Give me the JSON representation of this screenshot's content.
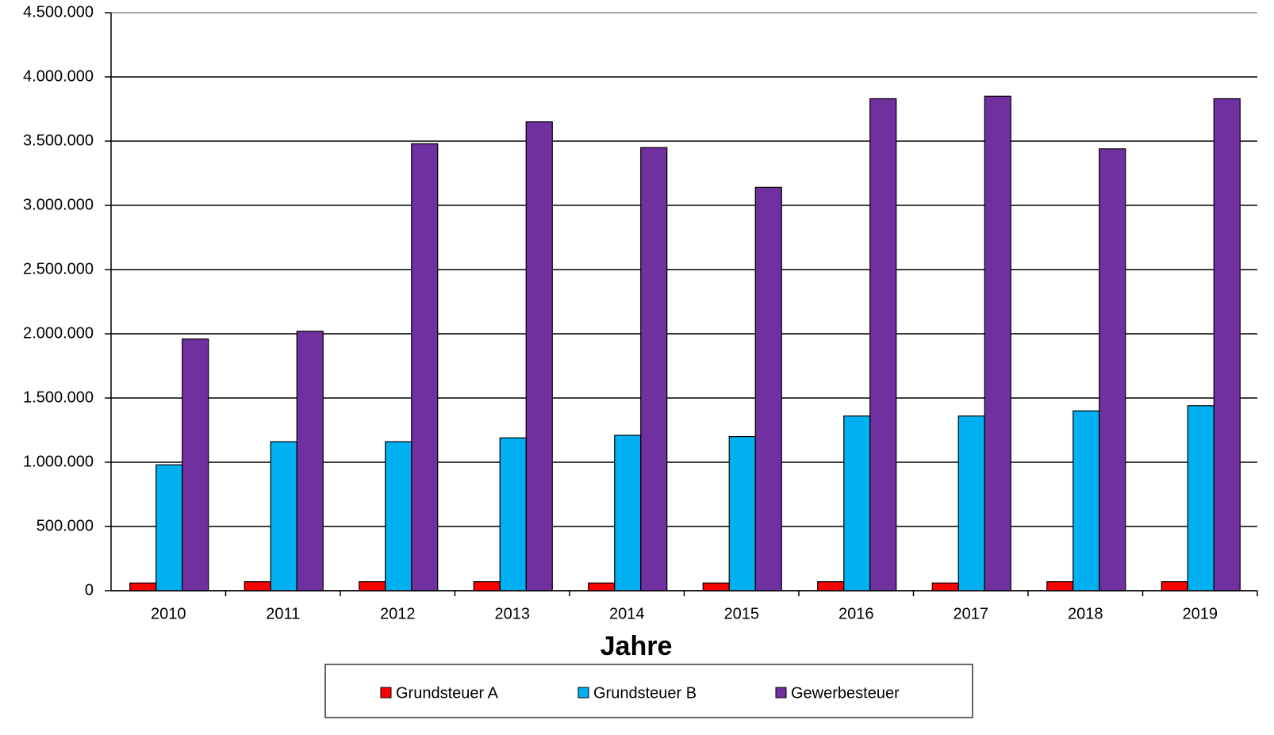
{
  "chart_data": {
    "type": "bar",
    "x_label": "Jahre",
    "categories": [
      "2010",
      "2011",
      "2012",
      "2013",
      "2014",
      "2015",
      "2016",
      "2017",
      "2018",
      "2019"
    ],
    "series": [
      {
        "name": "Grundsteuer A",
        "color": "#ff0000",
        "values": [
          60000,
          70000,
          70000,
          70000,
          60000,
          60000,
          70000,
          60000,
          70000,
          70000
        ]
      },
      {
        "name": "Grundsteuer B",
        "color": "#00b0f0",
        "values": [
          980000,
          1160000,
          1160000,
          1190000,
          1210000,
          1200000,
          1360000,
          1360000,
          1400000,
          1440000
        ]
      },
      {
        "name": "Gewerbesteuer",
        "color": "#7030a0",
        "values": [
          1960000,
          2020000,
          3480000,
          3650000,
          3450000,
          3140000,
          3830000,
          3850000,
          3440000,
          3830000
        ]
      }
    ],
    "ylim": [
      0,
      4500000
    ],
    "yticks": [
      0,
      {
        "value": 500000,
        "label": "500.000"
      },
      {
        "value": 1000000,
        "label": "1.000.000"
      },
      {
        "value": 1500000,
        "label": "1.500.000"
      },
      {
        "value": 2000000,
        "label": "2.000.000"
      },
      {
        "value": 2500000,
        "label": "2.500.000"
      },
      {
        "value": 3000000,
        "label": "3.000.000"
      },
      {
        "value": 3500000,
        "label": "3.500.000"
      },
      {
        "value": 4000000,
        "label": "4.000.000"
      },
      {
        "value": 4500000,
        "label": "4.500.000"
      }
    ],
    "grid": true,
    "legend": "bottom"
  }
}
